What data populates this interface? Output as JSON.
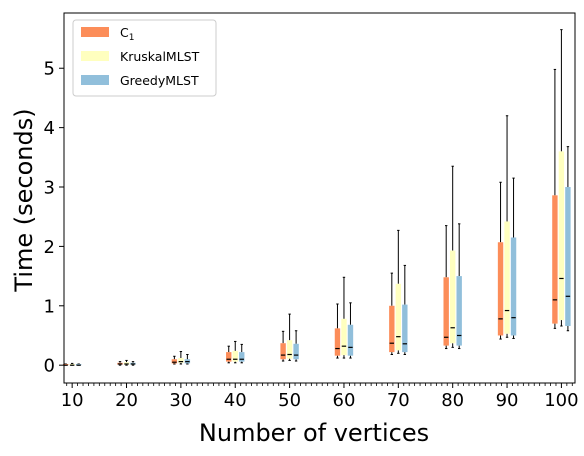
{
  "chart_data": {
    "type": "boxplot",
    "xlabel": "Number of vertices",
    "ylabel": "Time (seconds)",
    "categories": [
      "10",
      "20",
      "30",
      "40",
      "50",
      "60",
      "70",
      "80",
      "90",
      "100"
    ],
    "x": [
      10,
      20,
      30,
      40,
      50,
      60,
      70,
      80,
      90,
      100
    ],
    "xlim": [
      8.5,
      102.5
    ],
    "ylim": [
      -0.3,
      5.93
    ],
    "yticks": [
      0,
      1,
      2,
      3,
      4,
      5
    ],
    "grid": false,
    "legend_position": "top-left",
    "series": [
      {
        "name": "C",
        "name_subscript": "1",
        "color": "#fc8d59",
        "boxes": [
          {
            "x": 10,
            "whislo": 0.0,
            "q1": 0.0,
            "med": 0.0,
            "q3": 0.02,
            "whishi": 0.02
          },
          {
            "x": 20,
            "whislo": 0.0,
            "q1": 0.01,
            "med": 0.02,
            "q3": 0.04,
            "whishi": 0.06
          },
          {
            "x": 30,
            "whislo": 0.02,
            "q1": 0.03,
            "med": 0.05,
            "q3": 0.1,
            "whishi": 0.15
          },
          {
            "x": 40,
            "whislo": 0.04,
            "q1": 0.06,
            "med": 0.1,
            "q3": 0.22,
            "whishi": 0.32
          },
          {
            "x": 50,
            "whislo": 0.07,
            "q1": 0.1,
            "med": 0.17,
            "q3": 0.37,
            "whishi": 0.57
          },
          {
            "x": 60,
            "whislo": 0.12,
            "q1": 0.16,
            "med": 0.28,
            "q3": 0.62,
            "whishi": 1.03
          },
          {
            "x": 70,
            "whislo": 0.18,
            "q1": 0.22,
            "med": 0.37,
            "q3": 1.0,
            "whishi": 1.55
          },
          {
            "x": 80,
            "whislo": 0.28,
            "q1": 0.33,
            "med": 0.47,
            "q3": 1.48,
            "whishi": 2.35
          },
          {
            "x": 90,
            "whislo": 0.44,
            "q1": 0.5,
            "med": 0.78,
            "q3": 2.07,
            "whishi": 3.08
          },
          {
            "x": 100,
            "whislo": 0.62,
            "q1": 0.7,
            "med": 1.1,
            "q3": 2.86,
            "whishi": 4.98
          }
        ]
      },
      {
        "name": "KruskalMLST",
        "color": "#ffffbf",
        "boxes": [
          {
            "x": 10,
            "whislo": 0.0,
            "q1": 0.0,
            "med": 0.0,
            "q3": 0.02,
            "whishi": 0.03
          },
          {
            "x": 20,
            "whislo": 0.0,
            "q1": 0.01,
            "med": 0.02,
            "q3": 0.05,
            "whishi": 0.08
          },
          {
            "x": 30,
            "whislo": 0.02,
            "q1": 0.04,
            "med": 0.06,
            "q3": 0.12,
            "whishi": 0.23
          },
          {
            "x": 40,
            "whislo": 0.04,
            "q1": 0.06,
            "med": 0.1,
            "q3": 0.24,
            "whishi": 0.4
          },
          {
            "x": 50,
            "whislo": 0.08,
            "q1": 0.11,
            "med": 0.18,
            "q3": 0.42,
            "whishi": 0.86
          },
          {
            "x": 60,
            "whislo": 0.12,
            "q1": 0.17,
            "med": 0.32,
            "q3": 0.78,
            "whishi": 1.48
          },
          {
            "x": 70,
            "whislo": 0.2,
            "q1": 0.25,
            "med": 0.48,
            "q3": 1.37,
            "whishi": 2.27
          },
          {
            "x": 80,
            "whislo": 0.3,
            "q1": 0.37,
            "med": 0.63,
            "q3": 1.93,
            "whishi": 3.35
          },
          {
            "x": 90,
            "whislo": 0.47,
            "q1": 0.53,
            "med": 0.92,
            "q3": 2.42,
            "whishi": 4.2
          },
          {
            "x": 100,
            "whislo": 0.66,
            "q1": 0.76,
            "med": 1.46,
            "q3": 3.6,
            "whishi": 5.65
          }
        ]
      },
      {
        "name": "GreedyMLST",
        "color": "#91bfdb",
        "boxes": [
          {
            "x": 10,
            "whislo": 0.0,
            "q1": 0.0,
            "med": 0.0,
            "q3": 0.02,
            "whishi": 0.02
          },
          {
            "x": 20,
            "whislo": 0.0,
            "q1": 0.01,
            "med": 0.02,
            "q3": 0.04,
            "whishi": 0.06
          },
          {
            "x": 30,
            "whislo": 0.02,
            "q1": 0.03,
            "med": 0.06,
            "q3": 0.1,
            "whishi": 0.18
          },
          {
            "x": 40,
            "whislo": 0.04,
            "q1": 0.06,
            "med": 0.1,
            "q3": 0.22,
            "whishi": 0.35
          },
          {
            "x": 50,
            "whislo": 0.07,
            "q1": 0.1,
            "med": 0.17,
            "q3": 0.36,
            "whishi": 0.58
          },
          {
            "x": 60,
            "whislo": 0.12,
            "q1": 0.16,
            "med": 0.3,
            "q3": 0.68,
            "whishi": 1.05
          },
          {
            "x": 70,
            "whislo": 0.18,
            "q1": 0.22,
            "med": 0.36,
            "q3": 1.02,
            "whishi": 1.68
          },
          {
            "x": 80,
            "whislo": 0.28,
            "q1": 0.33,
            "med": 0.5,
            "q3": 1.5,
            "whishi": 2.38
          },
          {
            "x": 90,
            "whislo": 0.45,
            "q1": 0.5,
            "med": 0.8,
            "q3": 2.15,
            "whishi": 3.15
          },
          {
            "x": 100,
            "whislo": 0.58,
            "q1": 0.66,
            "med": 1.16,
            "q3": 3.0,
            "whishi": 3.68
          }
        ]
      }
    ]
  }
}
